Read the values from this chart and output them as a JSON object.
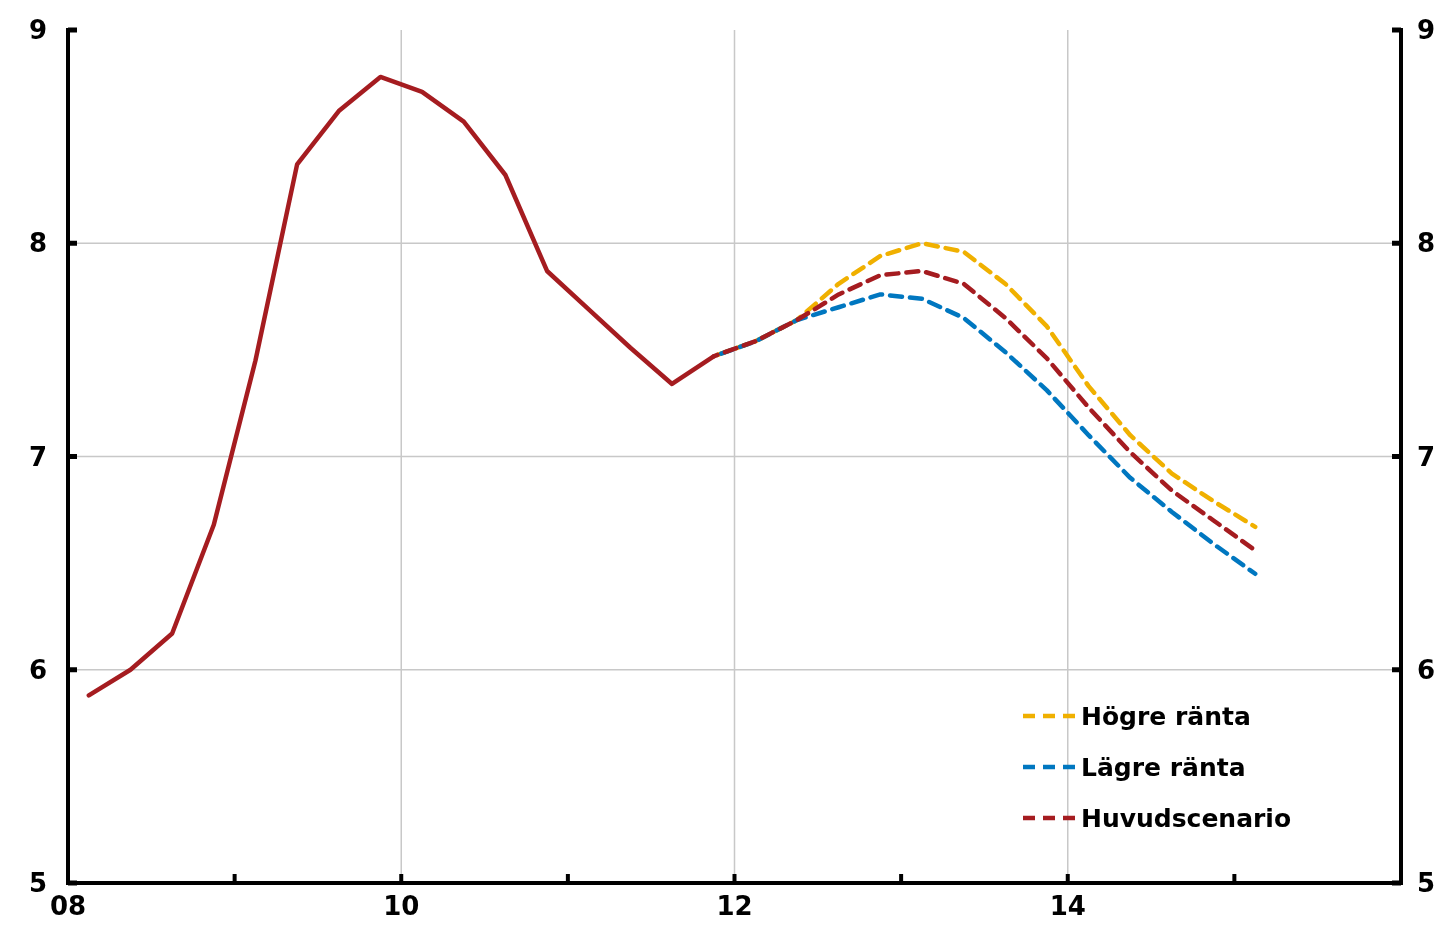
{
  "chart_data": {
    "type": "line",
    "xlim": [
      2008,
      2016
    ],
    "xticks": [
      {
        "value": 2008,
        "label": "08"
      },
      {
        "value": 2009,
        "label": null
      },
      {
        "value": 2010,
        "label": "10"
      },
      {
        "value": 2011,
        "label": null
      },
      {
        "value": 2012,
        "label": "12"
      },
      {
        "value": 2013,
        "label": null
      },
      {
        "value": 2014,
        "label": "14"
      },
      {
        "value": 2015,
        "label": null
      },
      {
        "value": 2016,
        "label": null
      }
    ],
    "ylim": [
      5,
      9
    ],
    "yticks": [
      5,
      6,
      7,
      8,
      9
    ],
    "y2lim": [
      5,
      9
    ],
    "y2ticks": [
      5,
      6,
      7,
      8,
      9
    ],
    "grid": true,
    "legend": "bottom right",
    "series": [
      {
        "color": "#a51c20",
        "line_style": "solid",
        "x": [
          2008.125,
          2008.375,
          2008.625,
          2008.875,
          2009.125,
          2009.375,
          2009.625,
          2009.875,
          2010.125,
          2010.375,
          2010.625,
          2010.875,
          2011.125,
          2011.375,
          2011.625,
          2011.875
        ],
        "values": [
          5.88,
          6.0,
          6.17,
          6.68,
          7.45,
          8.37,
          8.62,
          8.78,
          8.71,
          8.57,
          8.32,
          7.87,
          7.69,
          7.51,
          7.34,
          7.47
        ]
      },
      {
        "name": "Högre ränta",
        "color": "#f0b000",
        "line_style": "dashed",
        "x": [
          2011.875,
          2012.125,
          2012.375,
          2012.625,
          2012.875,
          2013.125,
          2013.375,
          2013.625,
          2013.875,
          2014.125,
          2014.375,
          2014.625,
          2014.875,
          2015.125
        ],
        "values": [
          7.47,
          7.54,
          7.64,
          7.81,
          7.94,
          8.0,
          7.96,
          7.81,
          7.61,
          7.33,
          7.1,
          6.92,
          6.79,
          6.67
        ]
      },
      {
        "name": "Lägre ränta",
        "color": "#0077c0",
        "line_style": "dashed",
        "x": [
          2011.875,
          2012.125,
          2012.375,
          2012.625,
          2012.875,
          2013.125,
          2013.375,
          2013.625,
          2013.875,
          2014.125,
          2014.375,
          2014.625,
          2014.875,
          2015.125
        ],
        "values": [
          7.47,
          7.54,
          7.64,
          7.7,
          7.76,
          7.74,
          7.65,
          7.49,
          7.31,
          7.1,
          6.9,
          6.74,
          6.59,
          6.45
        ]
      },
      {
        "name": "Huvudscenario",
        "color": "#a51c20",
        "line_style": "dashed",
        "x": [
          2011.875,
          2012.125,
          2012.375,
          2012.625,
          2012.875,
          2013.125,
          2013.375,
          2013.625,
          2013.875,
          2014.125,
          2014.375,
          2014.625,
          2014.875,
          2015.125
        ],
        "values": [
          7.47,
          7.54,
          7.64,
          7.76,
          7.85,
          7.87,
          7.81,
          7.65,
          7.46,
          7.23,
          7.02,
          6.84,
          6.7,
          6.56
        ]
      }
    ]
  }
}
